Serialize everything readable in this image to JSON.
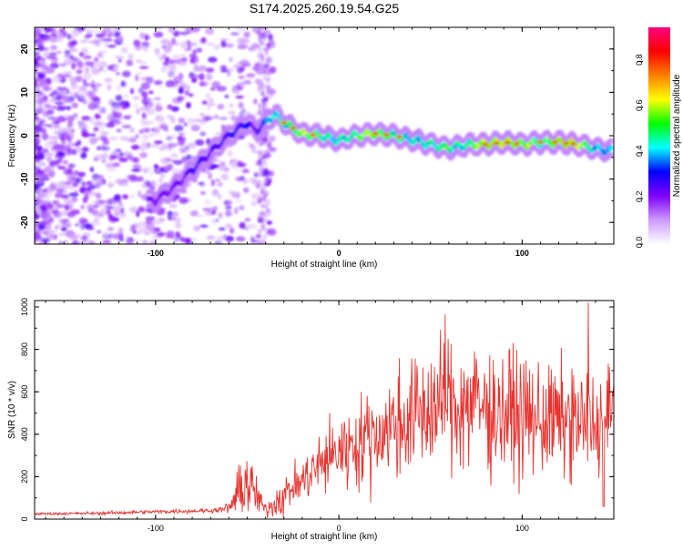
{
  "title": "S174.2025.260.19.54.G25",
  "chart_data": [
    {
      "type": "heatmap",
      "xlabel": "Height of straight line (km)",
      "ylabel": "Frequency (Hz)",
      "xlim": [
        -166,
        150
      ],
      "ylim": [
        -25,
        25
      ],
      "xticks": [
        -100,
        0,
        100
      ],
      "yticks": [
        -20,
        -10,
        0,
        10,
        20
      ],
      "xtick_labels": [
        "-100",
        "0",
        "100"
      ],
      "ytick_labels": [
        "-20",
        "-10",
        "0",
        "10",
        "20"
      ],
      "colorbar": {
        "label": "Normalized spectral amplitude",
        "range": [
          0,
          0.95
        ],
        "ticks": [
          0,
          0.2,
          0.4,
          0.6,
          0.8
        ],
        "tick_labels": [
          "0.0",
          "0.2",
          "0.4",
          "0.6",
          "0.8"
        ],
        "colors": [
          "#ffffff",
          "#cc99ff",
          "#8000ff",
          "#0000ff",
          "#00ffff",
          "#00ff00",
          "#ffff00",
          "#ff8000",
          "#ff0000",
          "#ff0080"
        ]
      },
      "ridge": {
        "x": [
          -100,
          -90,
          -80,
          -70,
          -60,
          -50,
          -45,
          -40,
          -35,
          -30,
          -20,
          -10,
          0,
          10,
          20,
          30,
          40,
          50,
          60,
          70,
          80,
          90,
          100,
          110,
          120,
          130,
          140,
          148
        ],
        "freq_hz": [
          -15,
          -12,
          -8,
          -4,
          0,
          3,
          1,
          3,
          5,
          3,
          0.5,
          0,
          -1,
          0,
          0.5,
          0,
          -1,
          -2,
          -3,
          -2,
          -2,
          -1.5,
          -2,
          -1.5,
          -1.5,
          -2,
          -3,
          -3.5
        ],
        "amplitude": [
          0.3,
          0.3,
          0.35,
          0.35,
          0.4,
          0.4,
          0.3,
          0.5,
          0.55,
          0.6,
          0.85,
          0.7,
          0.6,
          0.7,
          0.85,
          0.6,
          0.6,
          0.65,
          0.7,
          0.6,
          0.85,
          0.85,
          0.85,
          0.7,
          0.85,
          0.85,
          0.6,
          0.5
        ]
      }
    },
    {
      "type": "line",
      "xlabel": "Height of straight line (km)",
      "ylabel": "SNR (10 * v/v)",
      "xlim": [
        -166,
        150
      ],
      "ylim": [
        0,
        1030
      ],
      "xticks": [
        -100,
        0,
        100
      ],
      "yticks": [
        0,
        200,
        400,
        600,
        800,
        1000
      ],
      "xtick_labels": [
        "-100",
        "0",
        "100"
      ],
      "ytick_labels": [
        "0",
        "200",
        "400",
        "600",
        "800",
        "1000"
      ],
      "color": "#e8332f",
      "envelope": {
        "x": [
          -166,
          -130,
          -100,
          -70,
          -60,
          -55,
          -50,
          -45,
          -40,
          -30,
          -20,
          -10,
          0,
          10,
          20,
          30,
          40,
          50,
          60,
          70,
          80,
          90,
          100,
          110,
          120,
          130,
          140,
          145,
          150
        ],
        "y": [
          25,
          28,
          35,
          40,
          50,
          120,
          180,
          110,
          40,
          120,
          180,
          260,
          320,
          360,
          400,
          440,
          480,
          520,
          540,
          540,
          520,
          500,
          480,
          470,
          460,
          450,
          440,
          450,
          500
        ]
      },
      "peaks": [
        {
          "x": 58,
          "y": 965
        },
        {
          "x": 136,
          "y": 1020
        },
        {
          "x": 95,
          "y": 830
        },
        {
          "x": 74,
          "y": 790
        },
        {
          "x": 127,
          "y": 710
        }
      ]
    }
  ]
}
